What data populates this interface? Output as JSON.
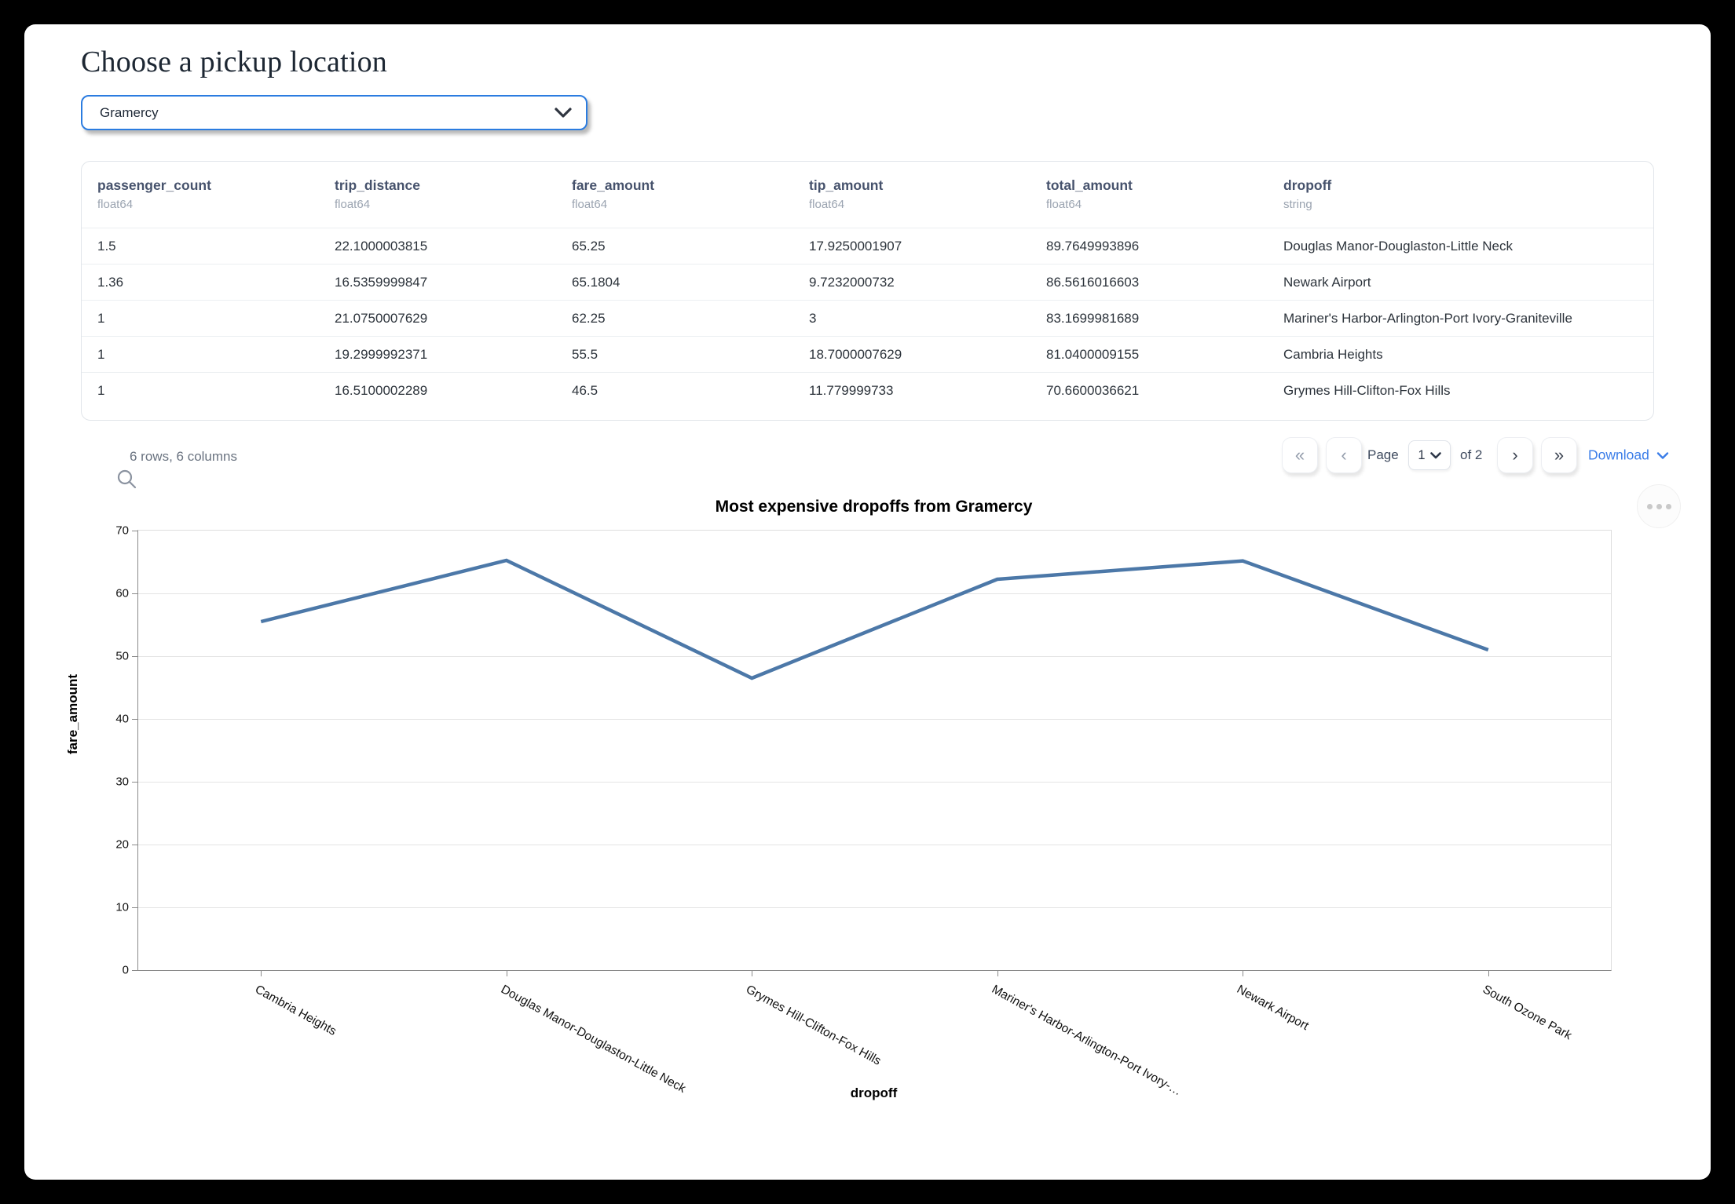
{
  "page": {
    "title": "Choose a pickup location"
  },
  "picker": {
    "value": "Gramercy"
  },
  "table": {
    "columns": [
      {
        "name": "passenger_count",
        "dtype": "float64"
      },
      {
        "name": "trip_distance",
        "dtype": "float64"
      },
      {
        "name": "fare_amount",
        "dtype": "float64"
      },
      {
        "name": "tip_amount",
        "dtype": "float64"
      },
      {
        "name": "total_amount",
        "dtype": "float64"
      },
      {
        "name": "dropoff",
        "dtype": "string"
      }
    ],
    "rows": [
      [
        "1.5",
        "22.1000003815",
        "65.25",
        "17.9250001907",
        "89.7649993896",
        "Douglas Manor-Douglaston-Little Neck"
      ],
      [
        "1.36",
        "16.5359999847",
        "65.1804",
        "9.7232000732",
        "86.5616016603",
        "Newark Airport"
      ],
      [
        "1",
        "21.0750007629",
        "62.25",
        "3",
        "83.1699981689",
        "Mariner's Harbor-Arlington-Port Ivory-Graniteville"
      ],
      [
        "1",
        "19.2999992371",
        "55.5",
        "18.7000007629",
        "81.0400009155",
        "Cambria Heights"
      ],
      [
        "1",
        "16.5100002289",
        "46.5",
        "11.779999733",
        "70.6600036621",
        "Grymes Hill-Clifton-Fox Hills"
      ]
    ],
    "summary": "6 rows, 6 columns"
  },
  "pagination": {
    "first_label": "«",
    "prev_label": "‹",
    "next_label": "›",
    "last_label": "»",
    "page_label": "Page",
    "current_page": "1",
    "of_label": "of 2",
    "download_label": "Download"
  },
  "chart_data": {
    "type": "line",
    "title": "Most expensive dropoffs from Gramercy",
    "categories": [
      "Cambria Heights",
      "Douglas Manor-Douglaston-Little Neck",
      "Grymes Hill-Clifton-Fox Hills",
      "Mariner's Harbor-Arlington-Port Ivory-…",
      "Newark Airport",
      "South Ozone Park"
    ],
    "values": [
      55.5,
      65.25,
      46.5,
      62.25,
      65.1804,
      51
    ],
    "xlabel": "dropoff",
    "ylabel": "fare_amount",
    "ylim": [
      0,
      70
    ],
    "yticks": [
      0,
      10,
      20,
      30,
      40,
      50,
      60,
      70
    ],
    "grid": true,
    "legend": "none",
    "line_color": "#4c78a8"
  },
  "colors": {
    "accent_blue": "#2b7ce0",
    "link_blue": "#3b7de8",
    "line_blue": "#4c78a8"
  }
}
